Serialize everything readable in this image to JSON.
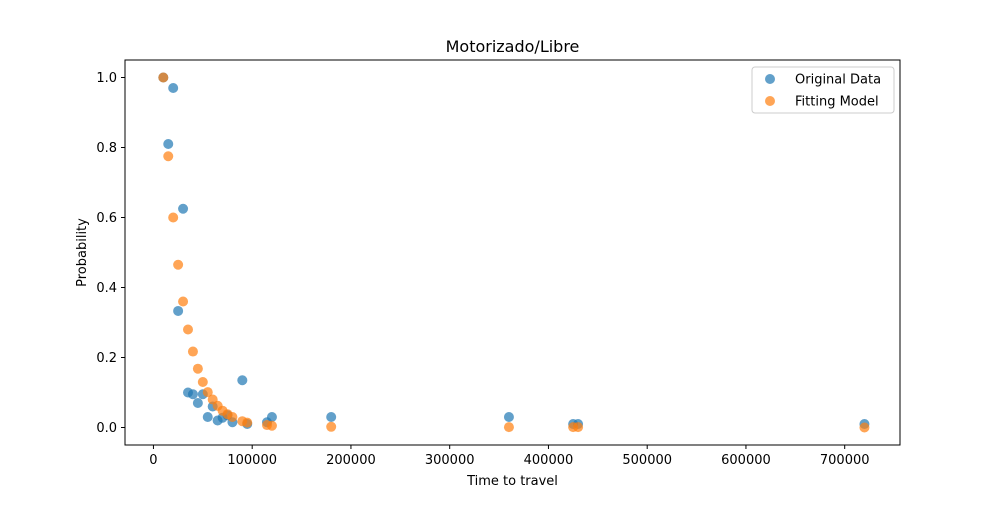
{
  "chart_data": {
    "type": "scatter",
    "title": "Motorizado/Libre",
    "xlabel": "Time to travel",
    "ylabel": "Probability",
    "xlim": [
      -28800,
      756000
    ],
    "ylim": [
      -0.05,
      1.05
    ],
    "xticks": [
      0,
      100000,
      200000,
      300000,
      400000,
      500000,
      600000,
      700000
    ],
    "xtick_labels": [
      "0",
      "100000",
      "200000",
      "300000",
      "400000",
      "500000",
      "600000",
      "700000"
    ],
    "yticks": [
      0.0,
      0.2,
      0.4,
      0.6,
      0.8,
      1.0
    ],
    "ytick_labels": [
      "0.0",
      "0.2",
      "0.4",
      "0.6",
      "0.8",
      "1.0"
    ],
    "grid": false,
    "legend_position": "top-right",
    "series": [
      {
        "name": "Original Data",
        "color": "#1f77b4",
        "x": [
          10000,
          15000,
          20000,
          25000,
          30000,
          35000,
          40000,
          45000,
          50000,
          55000,
          60000,
          65000,
          70000,
          75000,
          80000,
          90000,
          95000,
          115000,
          120000,
          180000,
          360000,
          425000,
          430000,
          720000
        ],
        "y": [
          1.0,
          0.81,
          0.97,
          0.333,
          0.625,
          0.1,
          0.095,
          0.07,
          0.095,
          0.03,
          0.06,
          0.02,
          0.028,
          0.035,
          0.015,
          0.135,
          0.01,
          0.015,
          0.03,
          0.03,
          0.03,
          0.01,
          0.01,
          0.01
        ]
      },
      {
        "name": "Fitting Model",
        "color": "#ff7f0e",
        "x": [
          10000,
          15000,
          20000,
          25000,
          30000,
          35000,
          40000,
          45000,
          50000,
          55000,
          60000,
          65000,
          70000,
          75000,
          80000,
          90000,
          95000,
          115000,
          120000,
          180000,
          360000,
          425000,
          430000,
          720000
        ],
        "y": [
          1.0,
          0.775,
          0.6,
          0.465,
          0.36,
          0.28,
          0.217,
          0.168,
          0.13,
          0.101,
          0.08,
          0.062,
          0.048,
          0.038,
          0.03,
          0.018,
          0.014,
          0.007,
          0.005,
          0.002,
          0.001,
          0.001,
          0.001,
          0.0
        ]
      }
    ]
  }
}
